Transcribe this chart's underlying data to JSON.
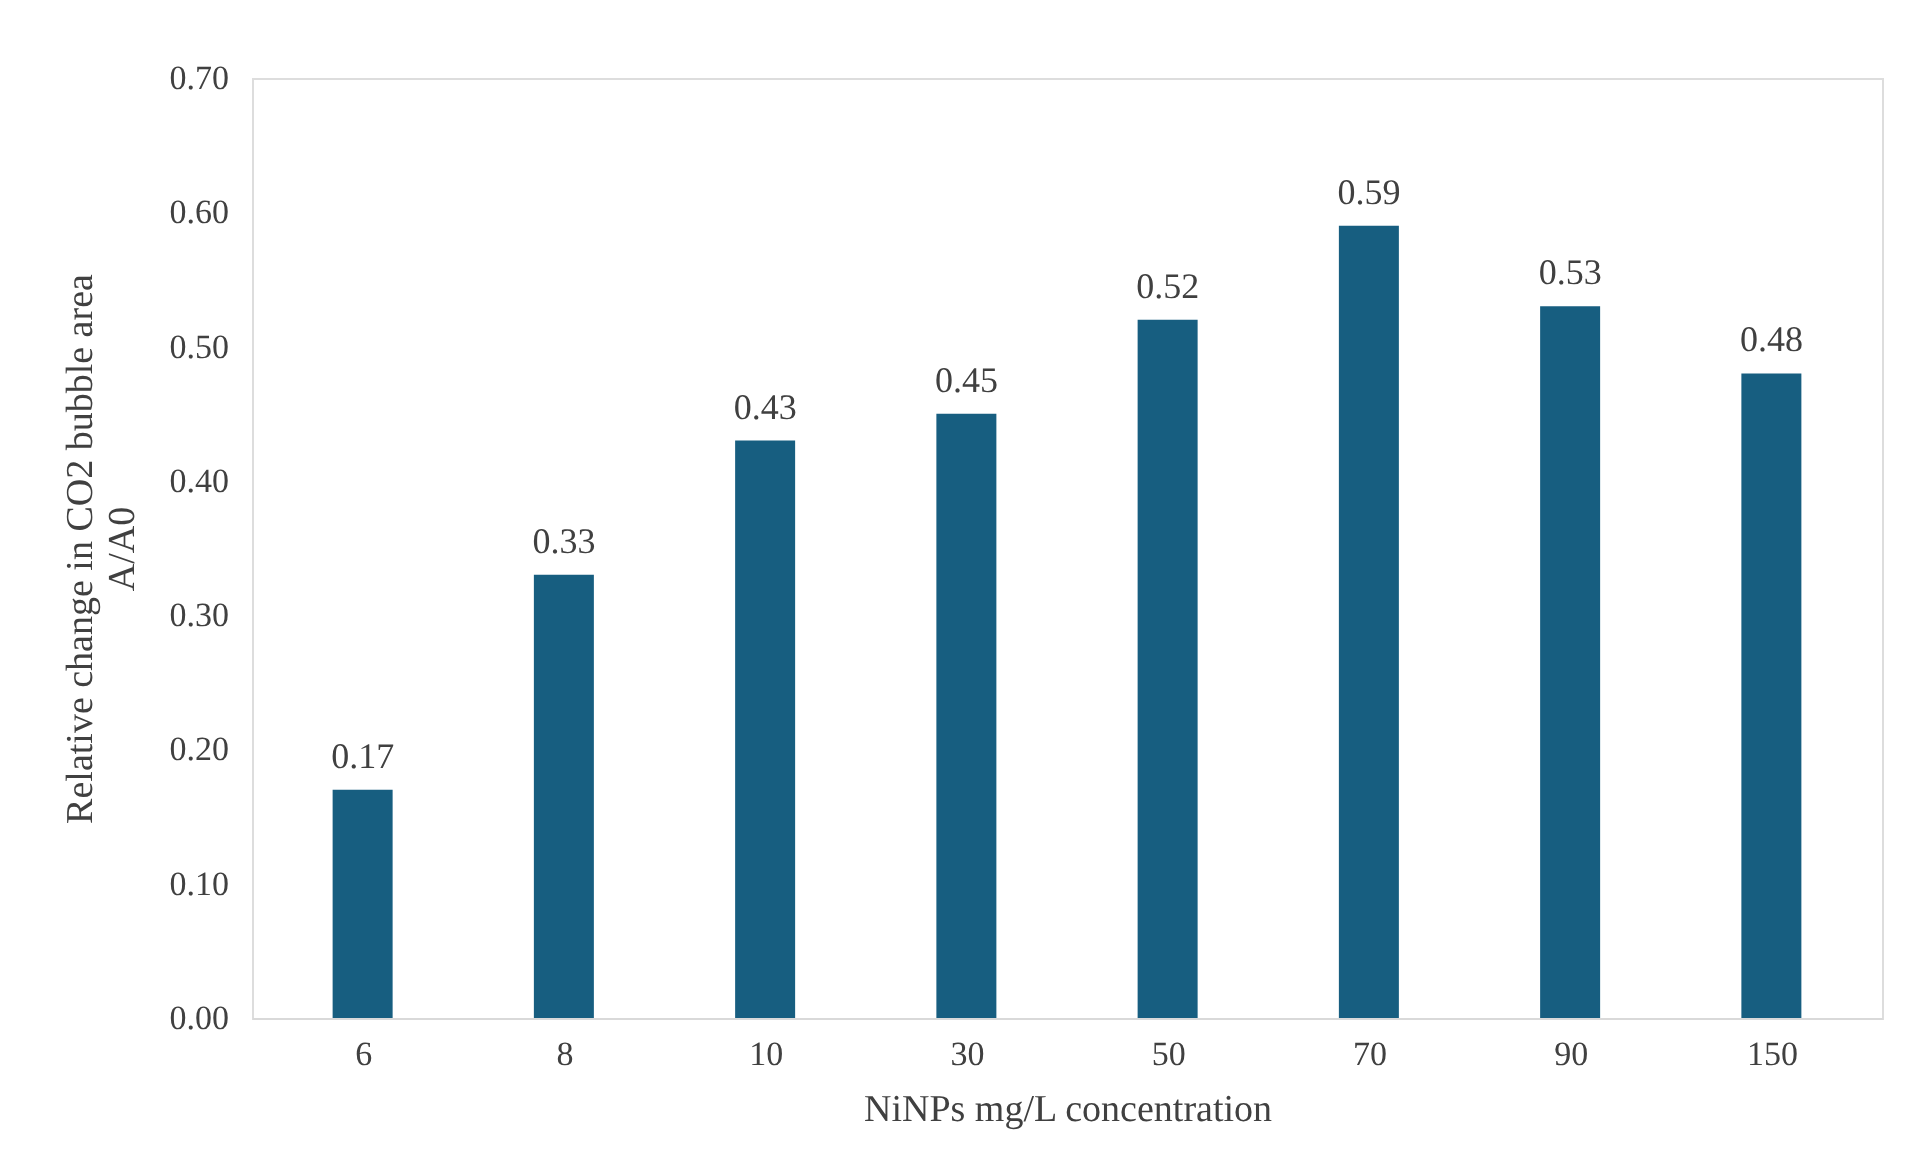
{
  "chart_data": {
    "type": "bar",
    "xlabel": "NiNPs mg/L concentration",
    "ylabel": "Relative  change in CO2 bubble area\nA/A0",
    "categories": [
      "6",
      "8",
      "10",
      "30",
      "50",
      "70",
      "90",
      "150"
    ],
    "values": [
      0.17,
      0.33,
      0.43,
      0.45,
      0.52,
      0.59,
      0.53,
      0.48
    ],
    "color": "#175e80",
    "ylim": [
      0,
      0.7
    ],
    "yticks": [
      {
        "value": 0,
        "label": "0.00"
      },
      {
        "value": 0.1,
        "label": "0.10"
      },
      {
        "value": 0.2,
        "label": "0.20"
      },
      {
        "value": 0.3,
        "label": "0.30"
      },
      {
        "value": 0.4,
        "label": "0.40"
      },
      {
        "value": 0.5,
        "label": "0.50"
      },
      {
        "value": 0.6,
        "label": "0.60"
      },
      {
        "value": 0.7,
        "label": "0.70"
      }
    ],
    "data_labels": true,
    "grid": false
  }
}
